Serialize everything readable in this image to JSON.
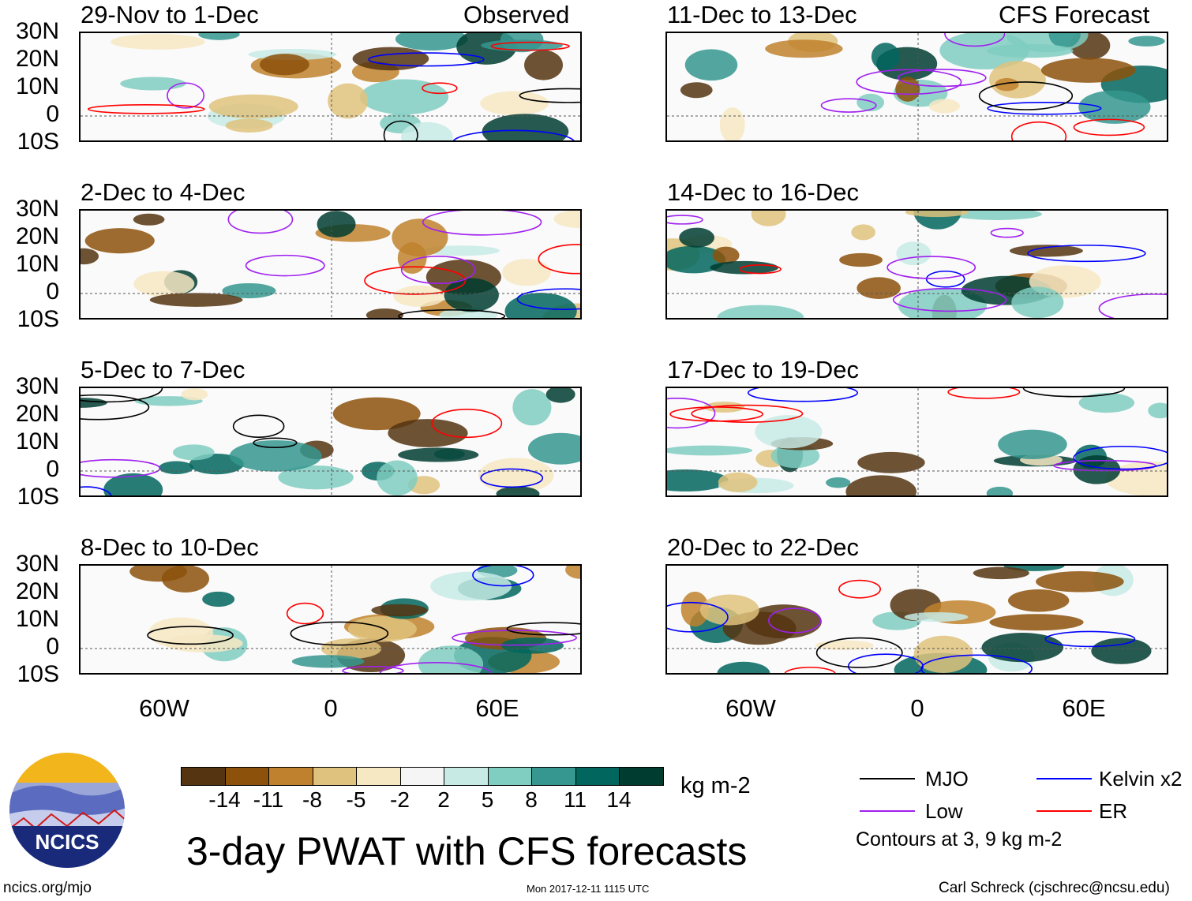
{
  "header": {
    "left_label": "Observed",
    "right_label": "CFS Forecast"
  },
  "panels": [
    {
      "title": "29-Nov to 1-Dec",
      "column": "left"
    },
    {
      "title": "2-Dec to 4-Dec",
      "column": "left"
    },
    {
      "title": "5-Dec to 7-Dec",
      "column": "left"
    },
    {
      "title": "8-Dec to 10-Dec",
      "column": "left"
    },
    {
      "title": "11-Dec to 13-Dec",
      "column": "right"
    },
    {
      "title": "14-Dec to 16-Dec",
      "column": "right"
    },
    {
      "title": "17-Dec to 19-Dec",
      "column": "right"
    },
    {
      "title": "20-Dec to 22-Dec",
      "column": "right"
    }
  ],
  "lat_labels": [
    "30N",
    "20N",
    "10N",
    "0",
    "10S"
  ],
  "lon_labels": [
    "60W",
    "0",
    "60E"
  ],
  "colorbar": {
    "colors": [
      "#553411",
      "#8c510a",
      "#bf812d",
      "#dfc27d",
      "#f6e8c3",
      "#f5f5f5",
      "#c7eae5",
      "#80cdc1",
      "#35978f",
      "#01665e",
      "#003c30"
    ],
    "ticks": [
      "-14",
      "-11",
      "-8",
      "-5",
      "-2",
      "2",
      "5",
      "8",
      "11",
      "14"
    ],
    "units": "kg m-2"
  },
  "legend": {
    "items": [
      {
        "label": "MJO",
        "color": "#000000"
      },
      {
        "label": "Kelvin x2",
        "color": "#0000ff"
      },
      {
        "label": "Low",
        "color": "#a020f0"
      },
      {
        "label": "ER",
        "color": "#ff0000"
      }
    ],
    "note": "Contours at 3, 9 kg m-2"
  },
  "title": "3-day PWAT with CFS forecasts",
  "logo_text": "NCICS",
  "footer": {
    "url": "ncics.org/mjo",
    "timestamp": "Mon 2017-12-11 1115 UTC",
    "credit": "Carl Schreck (cjschrec@ncsu.edu)"
  }
}
